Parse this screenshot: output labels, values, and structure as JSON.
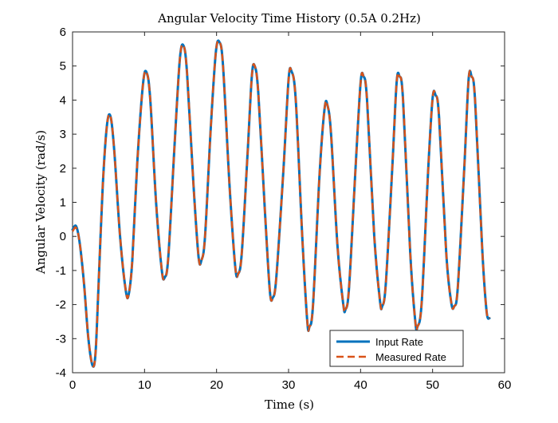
{
  "chart_data": {
    "type": "line",
    "title": "Angular Velocity Time History (0.5A 0.2Hz)",
    "xlabel": "Time (s)",
    "ylabel": "Angular Velocity (rad/s)",
    "xlim": [
      0,
      60
    ],
    "ylim": [
      -4,
      6
    ],
    "xticks": [
      0,
      10,
      20,
      30,
      40,
      50,
      60
    ],
    "yticks": [
      -4,
      -3,
      -2,
      -1,
      0,
      1,
      2,
      3,
      4,
      5,
      6
    ],
    "grid": false,
    "legend_position": "bottom-right",
    "series": [
      {
        "name": "Input Rate",
        "color": "#0072BD",
        "style": "solid",
        "x": [
          0,
          0.5,
          1.0,
          1.6,
          2.2,
          2.8,
          3.2,
          3.6,
          4.2,
          4.8,
          5.3,
          5.8,
          6.6,
          7.4,
          7.8,
          8.3,
          9.0,
          9.8,
          10.3,
          10.8,
          11.6,
          12.4,
          12.8,
          13.3,
          14.2,
          14.9,
          15.4,
          15.9,
          16.8,
          17.5,
          17.9,
          18.4,
          19.2,
          19.9,
          20.4,
          20.9,
          21.8,
          22.6,
          23.0,
          23.5,
          24.3,
          24.9,
          25.3,
          25.8,
          26.7,
          27.4,
          27.8,
          28.3,
          29.3,
          30.0,
          30.4,
          31.0,
          31.9,
          32.6,
          32.9,
          33.4,
          34.3,
          35.0,
          35.4,
          35.9,
          36.8,
          37.6,
          37.9,
          38.4,
          39.3,
          40.0,
          40.4,
          40.9,
          41.9,
          42.7,
          43.0,
          43.5,
          44.4,
          45.0,
          45.4,
          45.9,
          46.9,
          47.6,
          47.9,
          48.5,
          49.4,
          50.0,
          50.4,
          50.9,
          51.9,
          52.6,
          53.0,
          53.5,
          54.4,
          55.0,
          55.4,
          55.9,
          56.9,
          57.5,
          57.9
        ],
        "y": [
          0.2,
          0.3,
          -0.2,
          -1.4,
          -3.0,
          -3.8,
          -3.4,
          -1.5,
          1.5,
          3.3,
          3.5,
          2.5,
          0.0,
          -1.6,
          -1.7,
          -0.7,
          2.2,
          4.5,
          4.8,
          4.0,
          1.0,
          -1.0,
          -1.2,
          -0.6,
          2.8,
          5.2,
          5.6,
          4.8,
          1.5,
          -0.6,
          -0.7,
          0.0,
          3.2,
          5.4,
          5.7,
          5.0,
          1.5,
          -0.9,
          -1.1,
          -0.5,
          2.4,
          4.7,
          5.0,
          4.2,
          0.8,
          -1.6,
          -1.8,
          -1.2,
          2.0,
          4.6,
          4.85,
          4.0,
          0.0,
          -2.5,
          -2.65,
          -2.0,
          1.8,
          3.75,
          3.85,
          3.0,
          -0.3,
          -2.0,
          -2.15,
          -1.5,
          2.0,
          4.5,
          4.7,
          4.0,
          0.0,
          -1.9,
          -2.05,
          -1.4,
          2.0,
          4.5,
          4.7,
          4.0,
          -0.5,
          -2.5,
          -2.65,
          -1.9,
          2.0,
          4.05,
          4.15,
          3.5,
          -0.5,
          -1.95,
          -2.05,
          -1.5,
          2.0,
          4.6,
          4.7,
          4.0,
          -0.4,
          -2.2,
          -2.4
        ]
      },
      {
        "name": "Measured Rate",
        "color": "#D95319",
        "style": "dashed",
        "x": [
          0,
          0.5,
          1.0,
          1.6,
          2.2,
          2.8,
          3.2,
          3.6,
          4.2,
          4.8,
          5.3,
          5.8,
          6.6,
          7.4,
          7.8,
          8.3,
          9.0,
          9.8,
          10.3,
          10.8,
          11.6,
          12.4,
          12.8,
          13.3,
          14.2,
          14.9,
          15.4,
          15.9,
          16.8,
          17.5,
          17.9,
          18.4,
          19.2,
          19.9,
          20.4,
          20.9,
          21.8,
          22.6,
          23.0,
          23.5,
          24.3,
          24.9,
          25.3,
          25.8,
          26.7,
          27.4,
          27.8,
          28.3,
          29.3,
          30.0,
          30.4,
          31.0,
          31.9,
          32.6,
          32.9,
          33.4,
          34.3,
          35.0,
          35.4,
          35.9,
          36.8,
          37.6,
          37.9,
          38.4,
          39.3,
          40.0,
          40.4,
          40.9,
          41.9,
          42.7,
          43.0,
          43.5,
          44.4,
          45.0,
          45.4,
          45.9,
          46.9,
          47.6,
          47.9,
          48.5,
          49.4,
          50.0,
          50.4,
          50.9,
          51.9,
          52.6,
          53.0,
          53.5,
          54.4,
          55.0,
          55.4,
          55.9,
          56.9,
          57.5,
          57.9
        ],
        "y": [
          0.15,
          0.25,
          -0.2,
          -1.4,
          -3.0,
          -3.8,
          -3.4,
          -1.5,
          1.5,
          3.3,
          3.5,
          2.5,
          0.0,
          -1.6,
          -1.7,
          -0.7,
          2.2,
          4.5,
          4.8,
          4.0,
          1.0,
          -1.0,
          -1.2,
          -0.6,
          2.8,
          5.2,
          5.6,
          4.8,
          1.5,
          -0.6,
          -0.7,
          0.0,
          3.2,
          5.4,
          5.7,
          5.0,
          1.5,
          -0.9,
          -1.1,
          -0.5,
          2.4,
          4.7,
          5.0,
          4.2,
          0.8,
          -1.6,
          -1.8,
          -1.2,
          2.0,
          4.6,
          4.85,
          4.0,
          0.0,
          -2.5,
          -2.65,
          -2.0,
          1.8,
          3.75,
          3.85,
          3.0,
          -0.3,
          -2.0,
          -2.15,
          -1.5,
          2.0,
          4.5,
          4.7,
          4.0,
          0.0,
          -1.9,
          -2.05,
          -1.4,
          2.0,
          4.5,
          4.7,
          4.0,
          -0.5,
          -2.5,
          -2.65,
          -1.9,
          2.0,
          4.05,
          4.15,
          3.5,
          -0.5,
          -1.95,
          -2.05,
          -1.5,
          2.0,
          4.6,
          4.7,
          4.0,
          -0.4,
          -2.2,
          -2.4
        ]
      }
    ]
  }
}
